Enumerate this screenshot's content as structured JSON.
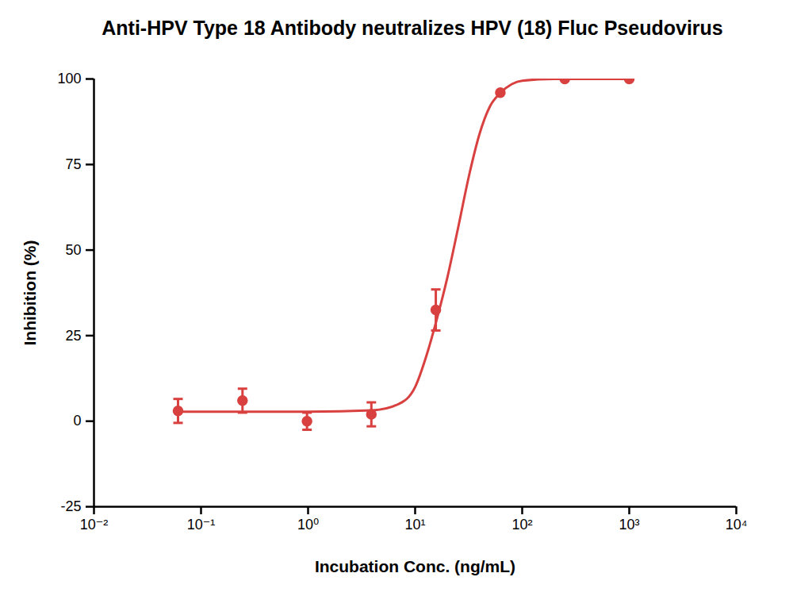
{
  "chart_data": {
    "type": "scatter",
    "title": "Anti-HPV Type 18 Antibody neutralizes HPV (18) Fluc Pseudovirus",
    "x_label": "Incubation Conc. (ng/mL)",
    "y_label": "Inhibition (%)",
    "log": "x",
    "color": "#d8413f",
    "xlim": [
      0.01,
      10000
    ],
    "xticks": [
      {
        "value": 0.01,
        "label": "10⁻²"
      },
      {
        "value": 0.1,
        "label": "10⁻¹"
      },
      {
        "value": 1,
        "label": "10⁰"
      },
      {
        "value": 10,
        "label": "10¹"
      },
      {
        "value": 100,
        "label": "10²"
      },
      {
        "value": 1000,
        "label": "10³"
      },
      {
        "value": 10000,
        "label": "10⁴"
      }
    ],
    "ylim": [
      -25,
      100
    ],
    "yticks": [
      -25,
      0,
      25,
      50,
      75,
      100
    ],
    "series": [
      {
        "type": "scatter",
        "marker": "circle",
        "x": [
          0.061,
          0.244,
          0.977,
          3.9,
          15.6,
          62.5,
          250,
          1000
        ],
        "values": [
          3,
          6,
          0,
          2,
          32.5,
          96,
          100,
          100
        ],
        "error": [
          3.5,
          3.5,
          2.5,
          3.5,
          6,
          0,
          0,
          0
        ]
      },
      {
        "type": "line",
        "line_style": "solid",
        "x": [
          0.061,
          0.25,
          1,
          4,
          7,
          10,
          13,
          16,
          20,
          25,
          32,
          40,
          50,
          63,
          80,
          100,
          200,
          1000
        ],
        "values": [
          2.8,
          2.8,
          2.8,
          3.2,
          5,
          10,
          20,
          30,
          42,
          56,
          72,
          84,
          92,
          96,
          98.5,
          99.5,
          100,
          100
        ]
      }
    ]
  }
}
